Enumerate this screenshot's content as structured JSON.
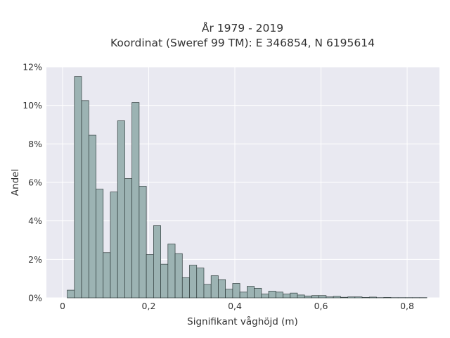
{
  "chart_data": {
    "type": "bar",
    "title": "År 1979 - 2019",
    "subtitle": "Koordinat (Sweref 99 TM): E 346854, N 6195614",
    "xlabel": "Signifikant våghöjd (m)",
    "ylabel": "Andel",
    "xlim": [
      -0.0375,
      0.875
    ],
    "ylim": [
      0,
      12
    ],
    "x_ticks": [
      0,
      0.2,
      0.4,
      0.6,
      0.8
    ],
    "x_tick_labels": [
      "0",
      "0,2",
      "0,4",
      "0,6",
      "0,8"
    ],
    "y_ticks": [
      0,
      2,
      4,
      6,
      8,
      10,
      12
    ],
    "y_tick_labels": [
      "0%",
      "2%",
      "4%",
      "6%",
      "8%",
      "10%",
      "12%"
    ],
    "grid": true,
    "bin_width": 0.0167,
    "bin_start": 0.0108,
    "values": [
      0.4,
      11.5,
      10.25,
      8.45,
      5.65,
      2.35,
      5.5,
      9.2,
      6.2,
      10.15,
      5.8,
      2.25,
      3.75,
      1.75,
      2.8,
      2.3,
      1.05,
      1.7,
      1.55,
      0.7,
      1.15,
      0.95,
      0.45,
      0.75,
      0.3,
      0.6,
      0.5,
      0.2,
      0.35,
      0.3,
      0.2,
      0.25,
      0.15,
      0.1,
      0.12,
      0.12,
      0.05,
      0.08,
      0.03,
      0.05,
      0.05,
      0.02,
      0.04,
      0.01,
      0.02,
      0.01,
      0.01,
      0.01,
      0.01,
      0.01
    ],
    "colors": {
      "background": "#e9e9f1",
      "grid": "#ffffff",
      "bar_fill": "#9cb3b3",
      "bar_stroke": "#2f3c3c",
      "text": "#333333"
    }
  }
}
